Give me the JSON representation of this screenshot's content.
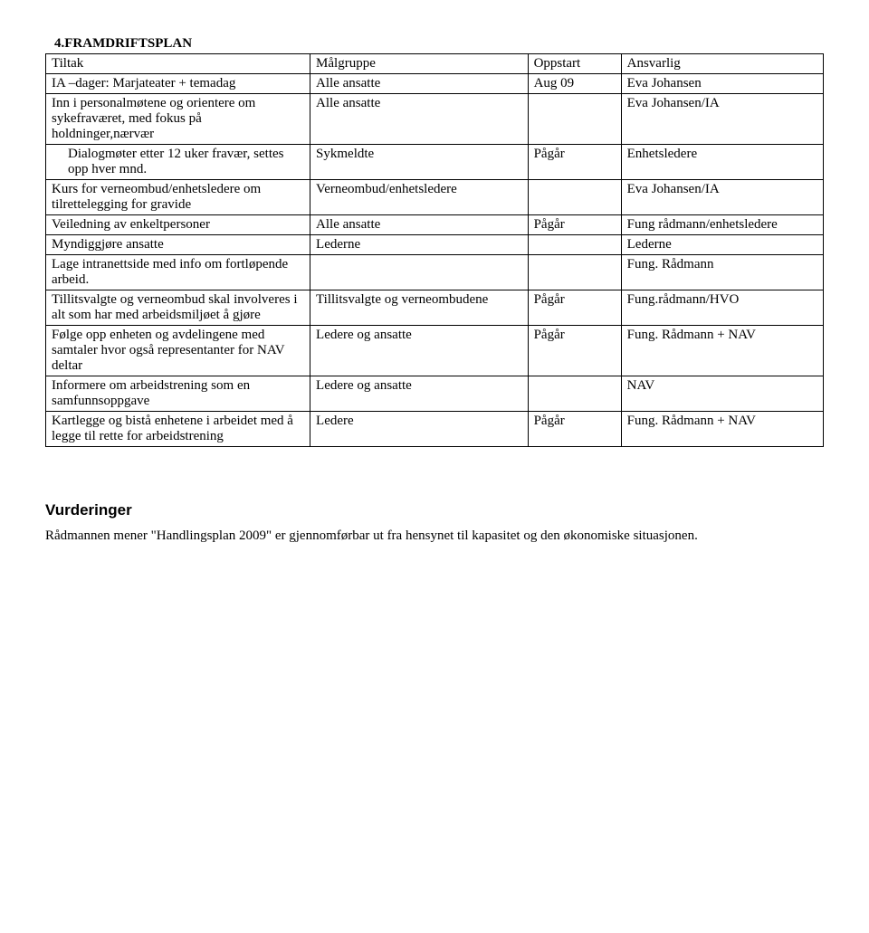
{
  "heading": "4.FRAMDRIFTSPLAN",
  "table": {
    "headers": [
      "Tiltak",
      "Målgruppe",
      "Oppstart",
      "Ansvarlig"
    ],
    "rows": [
      {
        "tiltak": "IA –dager: Marjateater + temadag",
        "malgruppe": "Alle ansatte",
        "oppstart": "Aug 09",
        "ansvarlig": "Eva Johansen",
        "indent": false
      },
      {
        "tiltak": "Inn i personalmøtene og orientere om sykefraværet, med fokus på holdninger,nærvær",
        "malgruppe": "Alle ansatte",
        "oppstart": "",
        "ansvarlig": "Eva Johansen/IA",
        "indent": false
      },
      {
        "tiltak": "Dialogmøter etter 12 uker fravær, settes opp hver mnd.",
        "malgruppe": "Sykmeldte",
        "oppstart": "Pågår",
        "ansvarlig": "Enhetsledere",
        "indent": true
      },
      {
        "tiltak": "Kurs for verneombud/enhetsledere om tilrettelegging for gravide",
        "malgruppe": "Verneombud/enhetsledere",
        "oppstart": "",
        "ansvarlig": "Eva Johansen/IA",
        "indent": false
      },
      {
        "tiltak": "Veiledning av enkeltpersoner",
        "malgruppe": "Alle ansatte",
        "oppstart": "Pågår",
        "ansvarlig": "Fung rådmann/enhetsledere",
        "indent": false
      },
      {
        "tiltak": "Myndiggjøre ansatte",
        "malgruppe": "Lederne",
        "oppstart": "",
        "ansvarlig": "Lederne",
        "indent": false
      },
      {
        "tiltak": "Lage intranettside med info om fortløpende arbeid.",
        "malgruppe": "",
        "oppstart": "",
        "ansvarlig": "Fung. Rådmann",
        "indent": false
      },
      {
        "tiltak": "Tillitsvalgte og verneombud skal involveres i alt som har med arbeidsmiljøet å gjøre",
        "malgruppe": "Tillitsvalgte og verneombudene",
        "oppstart": "Pågår",
        "ansvarlig": "Fung.rådmann/HVO",
        "indent": false
      },
      {
        "tiltak": "Følge opp enheten og avdelingene med samtaler hvor også representanter for NAV deltar",
        "malgruppe": "Ledere og ansatte",
        "oppstart": "Pågår",
        "ansvarlig": "Fung. Rådmann + NAV",
        "indent": false
      },
      {
        "tiltak": "Informere om arbeidstrening som en samfunnsoppgave",
        "malgruppe": "Ledere og ansatte",
        "oppstart": "",
        "ansvarlig": "NAV",
        "indent": false
      },
      {
        "tiltak": "Kartlegge og bistå enhetene i arbeidet med å legge til rette for arbeidstrening",
        "malgruppe": "Ledere",
        "oppstart": "Pågår",
        "ansvarlig": "Fung. Rådmann + NAV",
        "indent": false
      }
    ]
  },
  "sub_heading": "Vurderinger",
  "body_text": "Rådmannen mener \"Handlingsplan 2009\" er gjennomførbar ut fra hensynet til kapasitet og den økonomiske situasjonen."
}
